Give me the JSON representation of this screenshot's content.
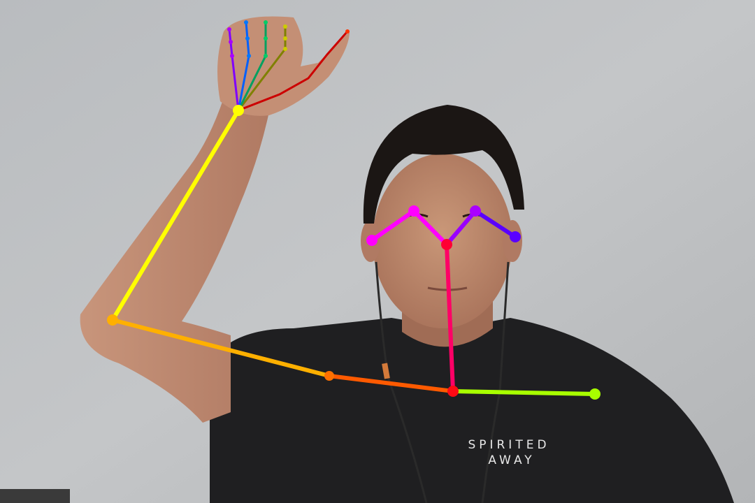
{
  "image": {
    "description_free": true
  },
  "shirt_print": {
    "line1": "SPIRITED",
    "line2": "AWAY"
  },
  "pose_colors": {
    "upper_arm": "#ffb000",
    "forearm": "#ffff00",
    "shoulder_link": "#ff5a00",
    "neck": "#ff0066",
    "right_shoulder_link": "#a8ff00",
    "left_eye_link": "#ff00ff",
    "left_ear_link": "#ff00ff",
    "right_eye_link": "#9900ff",
    "right_ear_link": "#5a00ff",
    "thumb": "#cc0000",
    "index": "#808000",
    "middle": "#00a060",
    "ring": "#0060ff",
    "pinky": "#8000ff"
  }
}
